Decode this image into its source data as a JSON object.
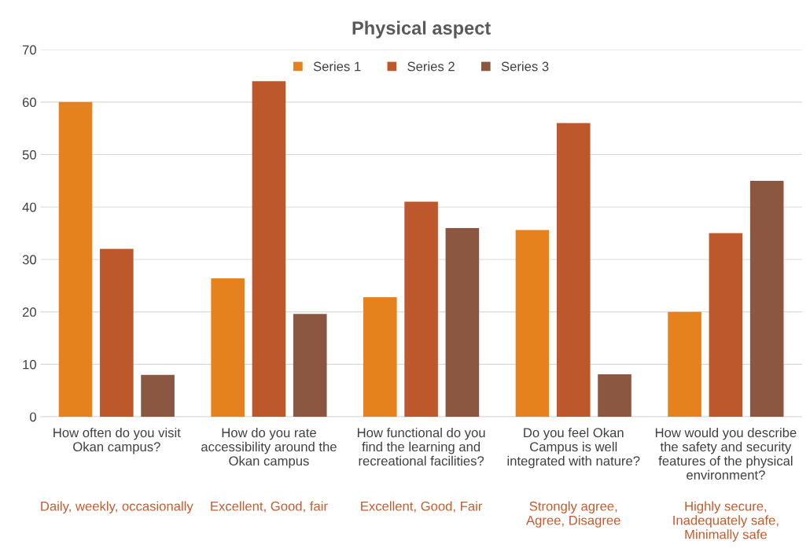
{
  "chart_data": {
    "type": "bar",
    "title": "Physical aspect",
    "categories": [
      "How often do you visit\nOkan campus?",
      "How do you rate\naccessibility around the\nOkan campus",
      "How functional do you\nfind the learning and\nrecreational facilities?",
      "Do you feel Okan\nCampus is well\nintegrated with nature?",
      "How would you describe\nthe safety and security\nfeatures of the physical\nenvironment?"
    ],
    "series": [
      {
        "name": "Series 1",
        "color": "#e6821e",
        "values": [
          60,
          26.4,
          22.8,
          35.6,
          20
        ]
      },
      {
        "name": "Series 2",
        "color": "#bd582c",
        "values": [
          32,
          64,
          41,
          56,
          35
        ]
      },
      {
        "name": "Series 3",
        "color": "#8b5740",
        "values": [
          8,
          19.6,
          36,
          8.1,
          45
        ]
      }
    ],
    "annotations": [
      "Daily, weekly, occasionally",
      "Excellent, Good, fair",
      "Excellent, Good, Fair",
      "Strongly agree,\nAgree, Disagree",
      "Highly secure,\nInadequately safe,\nMinimally safe"
    ],
    "ylim": [
      0,
      70
    ],
    "yticks": [
      0,
      10,
      20,
      30,
      40,
      50,
      60,
      70
    ],
    "grid": "y",
    "legend": "top"
  }
}
